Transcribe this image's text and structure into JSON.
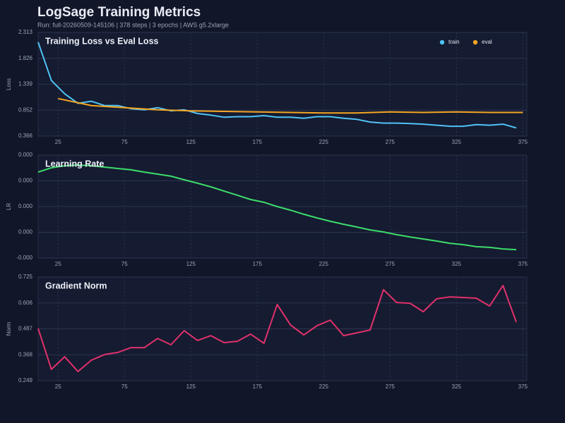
{
  "header": {
    "title": "LogSage Training Metrics",
    "subtitle": "Run: full-20260509-145106 | 378 steps | 3 epochs | AWS g5.2xlarge"
  },
  "chart_data": [
    {
      "type": "line",
      "title": "Training Loss vs Eval Loss",
      "ylabel": "Loss",
      "grid": true,
      "legend": "upper right",
      "xlim": [
        10,
        378
      ],
      "xticks": [
        25,
        75,
        125,
        175,
        225,
        275,
        325,
        375
      ],
      "ylim": [
        0.366,
        2.313
      ],
      "yticks": [
        0.366,
        0.852,
        1.339,
        1.826,
        2.313
      ],
      "series": [
        {
          "name": "train",
          "color": "#4fc3f7",
          "x": [
            10,
            20,
            30,
            40,
            50,
            60,
            70,
            80,
            90,
            100,
            110,
            120,
            130,
            140,
            150,
            160,
            170,
            180,
            190,
            200,
            210,
            220,
            230,
            240,
            250,
            260,
            270,
            280,
            290,
            300,
            310,
            320,
            330,
            340,
            350,
            360,
            370
          ],
          "values": [
            2.13,
            1.41,
            1.16,
            0.98,
            1.02,
            0.94,
            0.94,
            0.88,
            0.86,
            0.9,
            0.84,
            0.86,
            0.79,
            0.76,
            0.72,
            0.73,
            0.73,
            0.75,
            0.72,
            0.72,
            0.7,
            0.73,
            0.73,
            0.7,
            0.68,
            0.63,
            0.61,
            0.61,
            0.6,
            0.59,
            0.57,
            0.55,
            0.55,
            0.58,
            0.57,
            0.59,
            0.52
          ]
        },
        {
          "name": "eval",
          "color": "#f5a623",
          "x": [
            25,
            50,
            75,
            100,
            125,
            150,
            175,
            200,
            225,
            250,
            275,
            300,
            325,
            350,
            375
          ],
          "values": [
            1.07,
            0.94,
            0.9,
            0.86,
            0.84,
            0.83,
            0.82,
            0.81,
            0.8,
            0.8,
            0.82,
            0.81,
            0.82,
            0.81,
            0.81
          ]
        }
      ]
    },
    {
      "type": "line",
      "title": "Learning Rate",
      "ylabel": "LR",
      "grid": true,
      "xlim": [
        10,
        378
      ],
      "xticks": [
        25,
        75,
        125,
        175,
        225,
        275,
        325,
        375
      ],
      "ylim": [
        -2.5e-06,
        5.75e-05
      ],
      "yticks": [
        {
          "value": -2.5e-06,
          "label": "-0.000"
        },
        {
          "value": 1.25e-05,
          "label": "0.000"
        },
        {
          "value": 2.75e-05,
          "label": "0.000"
        },
        {
          "value": 4.25e-05,
          "label": "0.000"
        },
        {
          "value": 5.75e-05,
          "label": "0.000"
        }
      ],
      "series": [
        {
          "name": "lr",
          "color": "#3ddc6b",
          "x": [
            10,
            20,
            30,
            40,
            50,
            60,
            70,
            80,
            90,
            100,
            110,
            120,
            130,
            140,
            150,
            160,
            170,
            180,
            190,
            200,
            210,
            220,
            230,
            240,
            250,
            260,
            270,
            280,
            290,
            300,
            310,
            320,
            330,
            340,
            350,
            360,
            370
          ],
          "values": [
            4.76e-05,
            5.01e-05,
            5.13e-05,
            5.17e-05,
            5.13e-05,
            5.05e-05,
            4.97e-05,
            4.89e-05,
            4.76e-05,
            4.64e-05,
            4.52e-05,
            4.31e-05,
            4.11e-05,
            3.9e-05,
            3.65e-05,
            3.41e-05,
            3.16e-05,
            3e-05,
            2.75e-05,
            2.54e-05,
            2.3e-05,
            2.09e-05,
            1.89e-05,
            1.72e-05,
            1.56e-05,
            1.39e-05,
            1.27e-05,
            1.11e-05,
            9.8e-06,
            8.6e-06,
            7.4e-06,
            6.1e-06,
            5.3e-06,
            4.1e-06,
            3.7e-06,
            2.8e-06,
            2.4e-06
          ]
        }
      ]
    },
    {
      "type": "line",
      "title": "Gradient Norm",
      "ylabel": "Norm",
      "grid": true,
      "xlim": [
        10,
        378
      ],
      "xticks": [
        25,
        75,
        125,
        175,
        225,
        275,
        325,
        375
      ],
      "ylim": [
        0.249,
        0.725
      ],
      "yticks": [
        0.249,
        0.368,
        0.487,
        0.606,
        0.725
      ],
      "series": [
        {
          "name": "grad_norm",
          "color": "#e0316b",
          "x": [
            10,
            20,
            30,
            40,
            50,
            60,
            70,
            80,
            90,
            100,
            110,
            120,
            130,
            140,
            150,
            160,
            170,
            180,
            190,
            200,
            210,
            220,
            230,
            240,
            250,
            260,
            270,
            280,
            290,
            300,
            310,
            320,
            330,
            340,
            350,
            360,
            370
          ],
          "values": [
            0.489,
            0.301,
            0.359,
            0.291,
            0.343,
            0.369,
            0.379,
            0.401,
            0.401,
            0.443,
            0.414,
            0.479,
            0.434,
            0.456,
            0.424,
            0.43,
            0.463,
            0.421,
            0.599,
            0.505,
            0.459,
            0.502,
            0.527,
            0.456,
            0.469,
            0.482,
            0.667,
            0.608,
            0.605,
            0.566,
            0.625,
            0.634,
            0.631,
            0.628,
            0.592,
            0.686,
            0.518
          ]
        }
      ]
    }
  ]
}
